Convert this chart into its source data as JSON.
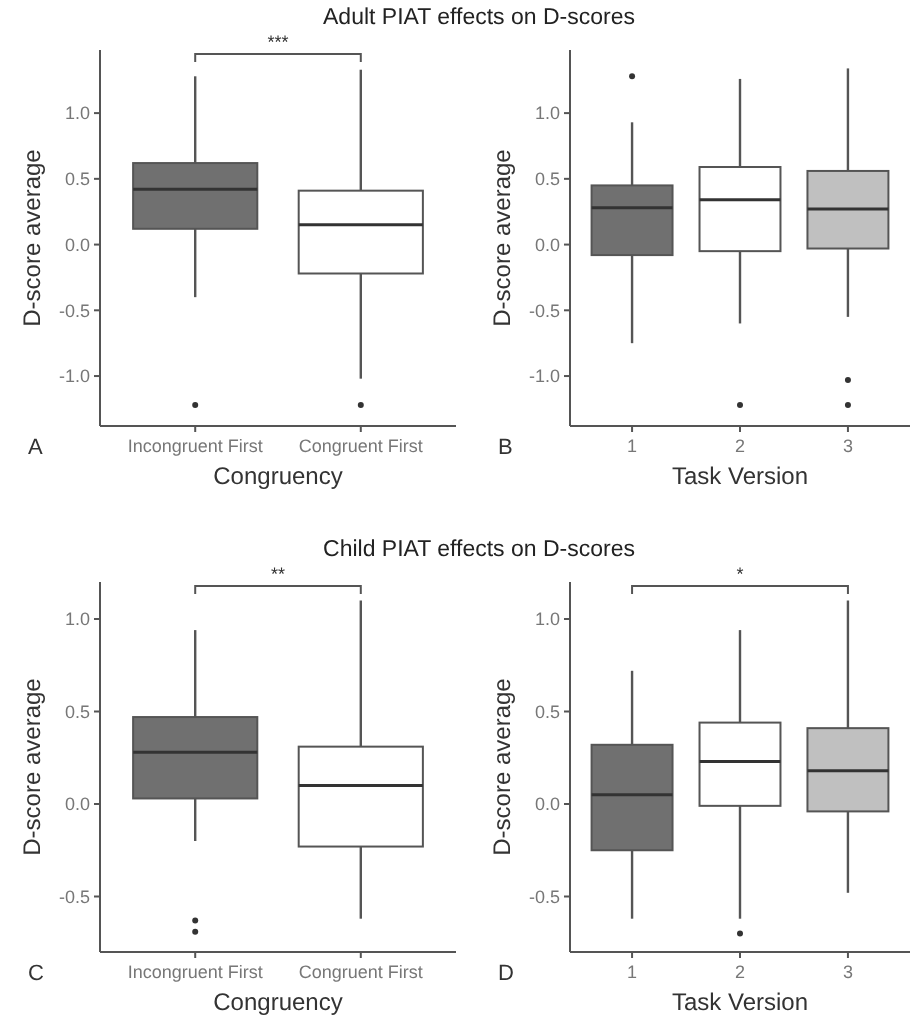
{
  "chart_data": [
    {
      "type": "box",
      "title": "Adult PIAT effects on D-scores",
      "xlabel": "Congruency",
      "ylabel": "D-score average",
      "categories": [
        "Incongruent First",
        "Congruent First"
      ],
      "colors": [
        "#707070",
        "#ffffff"
      ],
      "ylim": [
        -1.38,
        1.48
      ],
      "yticks": [
        {
          "value": -1,
          "label": "-1.0"
        },
        {
          "value": -0.5,
          "label": "-0.5"
        },
        {
          "value": 0,
          "label": "0.0"
        },
        {
          "value": 0.5,
          "label": "0.5"
        },
        {
          "value": 1,
          "label": "1.0"
        }
      ],
      "grid": false,
      "annotations": [
        "A",
        "***"
      ],
      "boxes": [
        {
          "low": -0.4,
          "q1": 0.12,
          "median": 0.42,
          "q3": 0.62,
          "high": 1.28,
          "outliers": [
            -1.22
          ]
        },
        {
          "low": -1.02,
          "q1": -0.22,
          "median": 0.15,
          "q3": 0.41,
          "high": 1.33,
          "outliers": [
            -1.22
          ]
        }
      ]
    },
    {
      "type": "box",
      "xlabel": "Task Version",
      "ylabel": "D-score average",
      "categories": [
        "1",
        "2",
        "3"
      ],
      "colors": [
        "#707070",
        "#ffffff",
        "#c0c0c0"
      ],
      "ylim": [
        -1.38,
        1.48
      ],
      "yticks": [
        {
          "value": -1,
          "label": "-1.0"
        },
        {
          "value": -0.5,
          "label": "-0.5"
        },
        {
          "value": 0,
          "label": "0.0"
        },
        {
          "value": 0.5,
          "label": "0.5"
        },
        {
          "value": 1,
          "label": "1.0"
        }
      ],
      "grid": false,
      "annotations": [
        "B"
      ],
      "boxes": [
        {
          "low": -0.75,
          "q1": -0.08,
          "median": 0.28,
          "q3": 0.45,
          "high": 0.93,
          "outliers": [
            1.28
          ]
        },
        {
          "low": -0.6,
          "q1": -0.05,
          "median": 0.34,
          "q3": 0.59,
          "high": 1.26,
          "outliers": [
            -1.22
          ]
        },
        {
          "low": -0.55,
          "q1": -0.03,
          "median": 0.27,
          "q3": 0.56,
          "high": 1.34,
          "outliers": [
            -1.03,
            -1.22
          ]
        }
      ]
    },
    {
      "type": "box",
      "title": "Child PIAT effects on D-scores",
      "xlabel": "Congruency",
      "ylabel": "D-score average",
      "categories": [
        "Incongruent First",
        "Congruent First"
      ],
      "colors": [
        "#707070",
        "#ffffff"
      ],
      "ylim": [
        -0.8,
        1.2
      ],
      "yticks": [
        {
          "value": -0.5,
          "label": "-0.5"
        },
        {
          "value": 0,
          "label": "0.0"
        },
        {
          "value": 0.5,
          "label": "0.5"
        },
        {
          "value": 1,
          "label": "1.0"
        }
      ],
      "grid": false,
      "annotations": [
        "C",
        "**"
      ],
      "boxes": [
        {
          "low": -0.2,
          "q1": 0.03,
          "median": 0.28,
          "q3": 0.47,
          "high": 0.94,
          "outliers": [
            -0.63,
            -0.69
          ]
        },
        {
          "low": -0.62,
          "q1": -0.23,
          "median": 0.1,
          "q3": 0.31,
          "high": 1.1
        }
      ]
    },
    {
      "type": "box",
      "xlabel": "Task Version",
      "ylabel": "D-score average",
      "categories": [
        "1",
        "2",
        "3"
      ],
      "colors": [
        "#707070",
        "#ffffff",
        "#c0c0c0"
      ],
      "ylim": [
        -0.8,
        1.2
      ],
      "yticks": [
        {
          "value": -0.5,
          "label": "-0.5"
        },
        {
          "value": 0,
          "label": "0.0"
        },
        {
          "value": 0.5,
          "label": "0.5"
        },
        {
          "value": 1,
          "label": "1.0"
        }
      ],
      "grid": false,
      "annotations": [
        "D",
        "*"
      ],
      "boxes": [
        {
          "low": -0.62,
          "q1": -0.25,
          "median": 0.05,
          "q3": 0.32,
          "high": 0.72
        },
        {
          "low": -0.62,
          "q1": -0.01,
          "median": 0.23,
          "q3": 0.44,
          "high": 0.94,
          "outliers": [
            -0.7
          ]
        },
        {
          "low": -0.48,
          "q1": -0.04,
          "median": 0.18,
          "q3": 0.41,
          "high": 1.1
        }
      ]
    }
  ]
}
